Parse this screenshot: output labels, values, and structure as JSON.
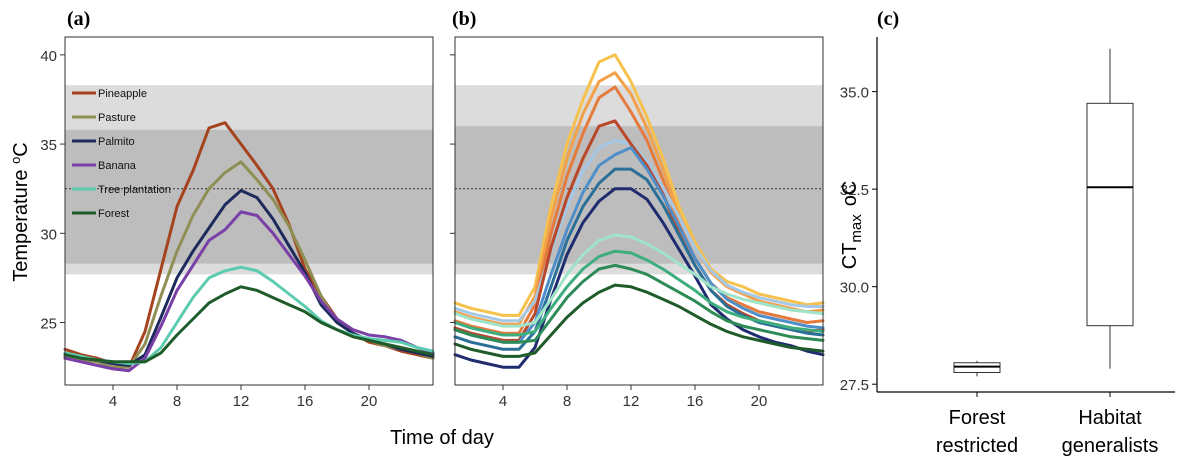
{
  "colors": {
    "band_light": "#dcdcdc",
    "band_dark": "#bdbdbd",
    "pineapple": "#a5431f",
    "pasture": "#8f8f55",
    "palmito": "#1d2a5c",
    "banana": "#7b3fa8",
    "tree_plantation": "#5cccb0",
    "forest": "#1f5c2a"
  },
  "chart_data": [
    {
      "panel": "(a)",
      "type": "line",
      "xlabel": "Time of day",
      "ylabel": "Temperature oC",
      "xlim": [
        1,
        24
      ],
      "ylim": [
        21.5,
        41
      ],
      "xticks": [
        4,
        8,
        12,
        16,
        20
      ],
      "yticks": [
        25,
        30,
        35,
        40
      ],
      "bands": [
        {
          "from": 27.7,
          "to": 38.3,
          "shade": "light"
        },
        {
          "from": 28.3,
          "to": 35.8,
          "shade": "dark"
        }
      ],
      "reference_line": 32.5,
      "legend_position": "top-left",
      "x": [
        1,
        2,
        3,
        4,
        5,
        6,
        7,
        8,
        9,
        10,
        11,
        12,
        13,
        14,
        15,
        16,
        17,
        18,
        19,
        20,
        21,
        22,
        23,
        24
      ],
      "series": [
        {
          "name": "Pineapple",
          "color": "pineapple",
          "values": [
            23.5,
            23.2,
            23.0,
            22.7,
            22.5,
            24.5,
            28.0,
            31.5,
            33.5,
            35.9,
            36.2,
            35.0,
            33.8,
            32.5,
            30.5,
            28.0,
            26.5,
            25.2,
            24.4,
            23.9,
            23.7,
            23.4,
            23.2,
            23.0
          ]
        },
        {
          "name": "Pasture",
          "color": "pasture",
          "values": [
            23.1,
            22.9,
            22.8,
            22.5,
            22.5,
            23.8,
            26.5,
            29.0,
            31.0,
            32.5,
            33.4,
            34.0,
            33.0,
            31.9,
            30.4,
            28.5,
            26.5,
            25.0,
            24.4,
            24.0,
            23.7,
            23.5,
            23.3,
            23.0
          ]
        },
        {
          "name": "Palmito",
          "color": "palmito",
          "values": [
            23.2,
            23.0,
            22.9,
            22.7,
            22.6,
            23.2,
            25.3,
            27.5,
            29.0,
            30.3,
            31.6,
            32.4,
            32.0,
            30.8,
            29.3,
            27.8,
            26.0,
            25.0,
            24.4,
            24.0,
            23.8,
            23.5,
            23.3,
            23.1
          ]
        },
        {
          "name": "Banana",
          "color": "banana",
          "values": [
            23.0,
            22.8,
            22.6,
            22.4,
            22.3,
            23.0,
            24.8,
            26.8,
            28.2,
            29.6,
            30.2,
            31.2,
            31.0,
            30.0,
            28.8,
            27.6,
            26.2,
            25.2,
            24.6,
            24.3,
            24.2,
            24.0,
            23.6,
            23.3
          ]
        },
        {
          "name": "Tree plantation",
          "color": "tree_plantation",
          "values": [
            23.3,
            23.1,
            22.9,
            22.8,
            22.7,
            22.8,
            23.6,
            25.0,
            26.4,
            27.5,
            27.9,
            28.1,
            27.9,
            27.3,
            26.6,
            25.9,
            25.1,
            24.6,
            24.3,
            24.1,
            24.0,
            23.9,
            23.6,
            23.4
          ]
        },
        {
          "name": "Forest",
          "color": "forest",
          "values": [
            23.2,
            23.0,
            22.9,
            22.8,
            22.8,
            22.8,
            23.3,
            24.3,
            25.2,
            26.1,
            26.6,
            27.0,
            26.8,
            26.4,
            26.0,
            25.6,
            25.0,
            24.6,
            24.2,
            24.0,
            23.8,
            23.6,
            23.4,
            23.2
          ]
        }
      ]
    },
    {
      "panel": "(b)",
      "type": "line",
      "xlim": [
        1,
        24
      ],
      "ylim": [
        21.5,
        41
      ],
      "xticks": [
        4,
        8,
        12,
        16,
        20
      ],
      "bands": [
        {
          "from": 27.7,
          "to": 38.3,
          "shade": "light"
        },
        {
          "from": 28.3,
          "to": 36.0,
          "shade": "dark"
        }
      ],
      "reference_line": 32.5,
      "x": [
        1,
        2,
        3,
        4,
        5,
        6,
        7,
        8,
        9,
        10,
        11,
        12,
        13,
        14,
        15,
        16,
        17,
        18,
        19,
        20,
        21,
        22,
        23,
        24
      ],
      "series": [
        {
          "color": "#f6c24d",
          "values": [
            26.1,
            25.8,
            25.6,
            25.4,
            25.4,
            27.0,
            31.5,
            35.0,
            37.5,
            39.6,
            40.0,
            38.5,
            36.5,
            34.2,
            31.5,
            29.5,
            28.0,
            27.3,
            27.0,
            26.6,
            26.4,
            26.2,
            26.0,
            26.1
          ]
        },
        {
          "color": "#f2a04a",
          "values": [
            25.6,
            25.3,
            25.1,
            24.9,
            24.9,
            26.5,
            30.8,
            34.2,
            36.7,
            38.5,
            39.0,
            37.8,
            35.9,
            33.6,
            31.0,
            29.2,
            27.8,
            27.0,
            26.6,
            26.2,
            26.0,
            25.8,
            25.6,
            25.7
          ]
        },
        {
          "color": "#e57a3d",
          "values": [
            25.1,
            24.8,
            24.6,
            24.4,
            24.4,
            26.0,
            30.0,
            33.2,
            35.6,
            37.6,
            38.2,
            36.8,
            35.2,
            33.0,
            30.5,
            28.6,
            27.2,
            26.4,
            26.0,
            25.6,
            25.4,
            25.2,
            25.0,
            25.1
          ]
        },
        {
          "color": "#a5c8e6",
          "values": [
            25.8,
            25.5,
            25.3,
            25.1,
            25.1,
            26.2,
            29.0,
            31.5,
            33.5,
            34.8,
            35.2,
            35.0,
            34.0,
            32.6,
            30.9,
            29.2,
            27.9,
            27.1,
            26.7,
            26.4,
            26.2,
            26.0,
            25.9,
            25.9
          ]
        },
        {
          "color": "#b9472a",
          "values": [
            24.7,
            24.4,
            24.2,
            24.0,
            24.0,
            25.5,
            29.2,
            32.0,
            34.2,
            36.0,
            36.3,
            35.0,
            33.8,
            32.2,
            30.0,
            28.2,
            26.8,
            26.0,
            25.5,
            25.1,
            24.9,
            24.7,
            24.5,
            24.6
          ]
        },
        {
          "color": "#4f8fc9",
          "values": [
            24.6,
            24.3,
            24.1,
            23.9,
            23.9,
            25.0,
            27.7,
            30.2,
            32.3,
            33.8,
            34.4,
            34.8,
            33.6,
            32.1,
            30.4,
            28.6,
            27.2,
            26.3,
            25.8,
            25.4,
            25.2,
            25.0,
            24.8,
            24.7
          ]
        },
        {
          "color": "#2a6f98",
          "values": [
            24.2,
            23.9,
            23.7,
            23.5,
            23.5,
            24.5,
            27.0,
            29.6,
            31.5,
            32.8,
            33.6,
            33.6,
            33.0,
            31.6,
            29.9,
            28.2,
            26.8,
            25.9,
            25.4,
            25.0,
            24.8,
            24.6,
            24.4,
            24.3
          ]
        },
        {
          "color": "#1f2c6f",
          "values": [
            23.2,
            22.9,
            22.7,
            22.5,
            22.5,
            23.6,
            26.3,
            28.8,
            30.6,
            31.8,
            32.5,
            32.5,
            31.9,
            30.6,
            29.1,
            27.6,
            26.0,
            25.2,
            24.6,
            24.2,
            23.9,
            23.7,
            23.4,
            23.2
          ]
        },
        {
          "color": "#9fe3c8",
          "values": [
            25.5,
            25.2,
            25.0,
            24.8,
            24.8,
            25.0,
            26.3,
            27.7,
            28.8,
            29.6,
            29.9,
            29.8,
            29.4,
            28.9,
            28.3,
            27.7,
            27.0,
            26.6,
            26.3,
            26.1,
            25.9,
            25.7,
            25.6,
            25.5
          ]
        },
        {
          "color": "#3fae7f",
          "values": [
            25.0,
            24.7,
            24.5,
            24.3,
            24.3,
            24.5,
            25.8,
            27.0,
            28.0,
            28.7,
            29.0,
            28.9,
            28.5,
            28.0,
            27.4,
            26.8,
            26.1,
            25.6,
            25.3,
            25.1,
            24.9,
            24.7,
            24.6,
            24.5
          ]
        },
        {
          "color": "#2e8b56",
          "values": [
            24.6,
            24.3,
            24.1,
            23.9,
            23.9,
            24.0,
            25.2,
            26.4,
            27.3,
            28.0,
            28.2,
            28.0,
            27.7,
            27.2,
            26.7,
            26.2,
            25.6,
            25.1,
            24.8,
            24.6,
            24.4,
            24.2,
            24.1,
            24.0
          ]
        },
        {
          "color": "#1f5c2a",
          "values": [
            23.8,
            23.5,
            23.3,
            23.1,
            23.1,
            23.3,
            24.3,
            25.3,
            26.1,
            26.7,
            27.1,
            27.0,
            26.7,
            26.3,
            25.9,
            25.4,
            24.9,
            24.5,
            24.2,
            24.0,
            23.8,
            23.6,
            23.5,
            23.4
          ]
        }
      ]
    },
    {
      "panel": "(c)",
      "type": "box",
      "ylabel_main": "CT",
      "ylabel_sub": "max",
      "ylabel_unit": "oC",
      "ylim": [
        27.3,
        36.4
      ],
      "yticks": [
        27.5,
        30.0,
        32.5,
        35.0
      ],
      "ytick_labels": [
        "27.5",
        "30.0",
        "32.5",
        "35.0"
      ],
      "categories": [
        {
          "line1": "Forest",
          "line2": "restricted",
          "min": 27.7,
          "q1": 27.8,
          "median": 27.95,
          "q3": 28.05,
          "max": 28.1
        },
        {
          "line1": "Habitat",
          "line2": "generalists",
          "min": 27.9,
          "q1": 29.0,
          "median": 32.55,
          "q3": 34.7,
          "max": 36.1
        }
      ]
    }
  ]
}
